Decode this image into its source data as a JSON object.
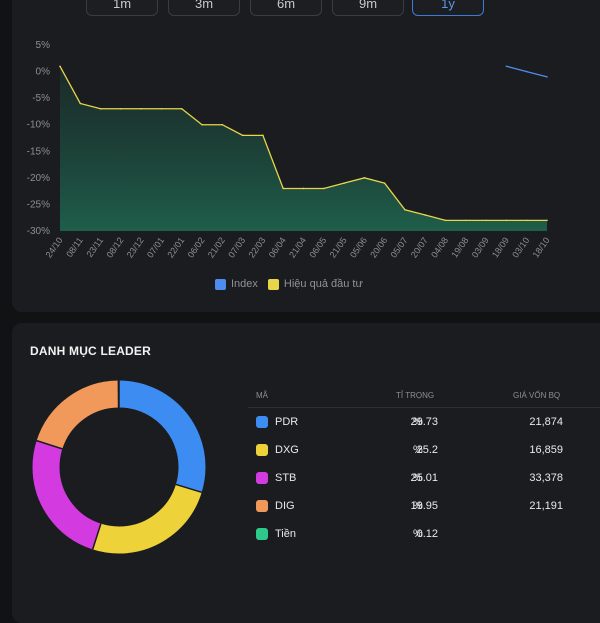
{
  "range_tabs": [
    {
      "label": "1m",
      "active": false
    },
    {
      "label": "3m",
      "active": false
    },
    {
      "label": "6m",
      "active": false
    },
    {
      "label": "9m",
      "active": false
    },
    {
      "label": "1y",
      "active": true
    }
  ],
  "chart": {
    "y_ticks": [
      "5%",
      "0%",
      "-5%",
      "-10%",
      "-15%",
      "-20%",
      "-25%",
      "-30%"
    ],
    "y_values": [
      5,
      0,
      -5,
      -10,
      -15,
      -20,
      -25,
      -30
    ],
    "x_ticks": [
      "24/10",
      "08/11",
      "23/11",
      "08/12",
      "23/12",
      "07/01",
      "22/01",
      "06/02",
      "21/02",
      "07/03",
      "22/03",
      "06/04",
      "21/04",
      "06/05",
      "21/05",
      "05/06",
      "20/06",
      "05/07",
      "20/07",
      "04/08",
      "19/08",
      "03/09",
      "18/09",
      "03/10",
      "18/10"
    ],
    "colors": {
      "index": "#4f8cf0",
      "performance": "#e7d64a",
      "fill_top": "#1c3a33",
      "fill_bottom": "#1f6a52"
    }
  },
  "chart_data": {
    "type": "line",
    "x": [
      "24/10",
      "08/11",
      "23/11",
      "08/12",
      "23/12",
      "07/01",
      "22/01",
      "06/02",
      "21/02",
      "07/03",
      "22/03",
      "06/04",
      "21/04",
      "06/05",
      "21/05",
      "05/06",
      "20/06",
      "05/07",
      "20/07",
      "04/08",
      "19/08",
      "03/09",
      "18/09",
      "03/10",
      "18/10"
    ],
    "ylim": [
      -30,
      5
    ],
    "series": [
      {
        "name": "Hiệu quả đầu tư",
        "values": [
          1,
          -6,
          -7,
          -7,
          -7,
          -7,
          -7,
          -10,
          -10,
          -12,
          -12,
          -22,
          -22,
          -22,
          -21,
          -20,
          -21,
          -26,
          -27,
          -28,
          -28,
          -28,
          -28,
          -28,
          -28
        ]
      },
      {
        "name": "Index",
        "values": [
          null,
          null,
          null,
          null,
          null,
          null,
          null,
          null,
          null,
          null,
          null,
          null,
          null,
          null,
          null,
          null,
          null,
          null,
          null,
          null,
          null,
          null,
          1,
          0,
          -1
        ]
      }
    ]
  },
  "legend": [
    {
      "label": "Index",
      "color": "#4f8cf0"
    },
    {
      "label": "Hiệu quả đầu tư",
      "color": "#e7d64a"
    }
  ],
  "portfolio": {
    "title": "DANH MỤC LEADER",
    "headers": {
      "code": "MÃ",
      "weight": "TỈ TRỌNG",
      "price": "GIÁ VỐN BQ"
    },
    "rows": [
      {
        "code": "PDR",
        "weight": "29.73",
        "pct": "%",
        "price": "21,874",
        "color": "#3c8cf2"
      },
      {
        "code": "DXG",
        "weight": "25.2",
        "pct": "%",
        "price": "16,859",
        "color": "#eed23a"
      },
      {
        "code": "STB",
        "weight": "25.01",
        "pct": "%",
        "price": "33,378",
        "color": "#d33be0"
      },
      {
        "code": "DIG",
        "weight": "19.95",
        "pct": "%",
        "price": "21,191",
        "color": "#f0995a"
      },
      {
        "code": "Tiền",
        "weight": "0.12",
        "pct": "%",
        "price": "",
        "color": "#2fc98d"
      }
    ],
    "donut_values": [
      29.73,
      25.2,
      25.01,
      19.95,
      0.12
    ]
  }
}
